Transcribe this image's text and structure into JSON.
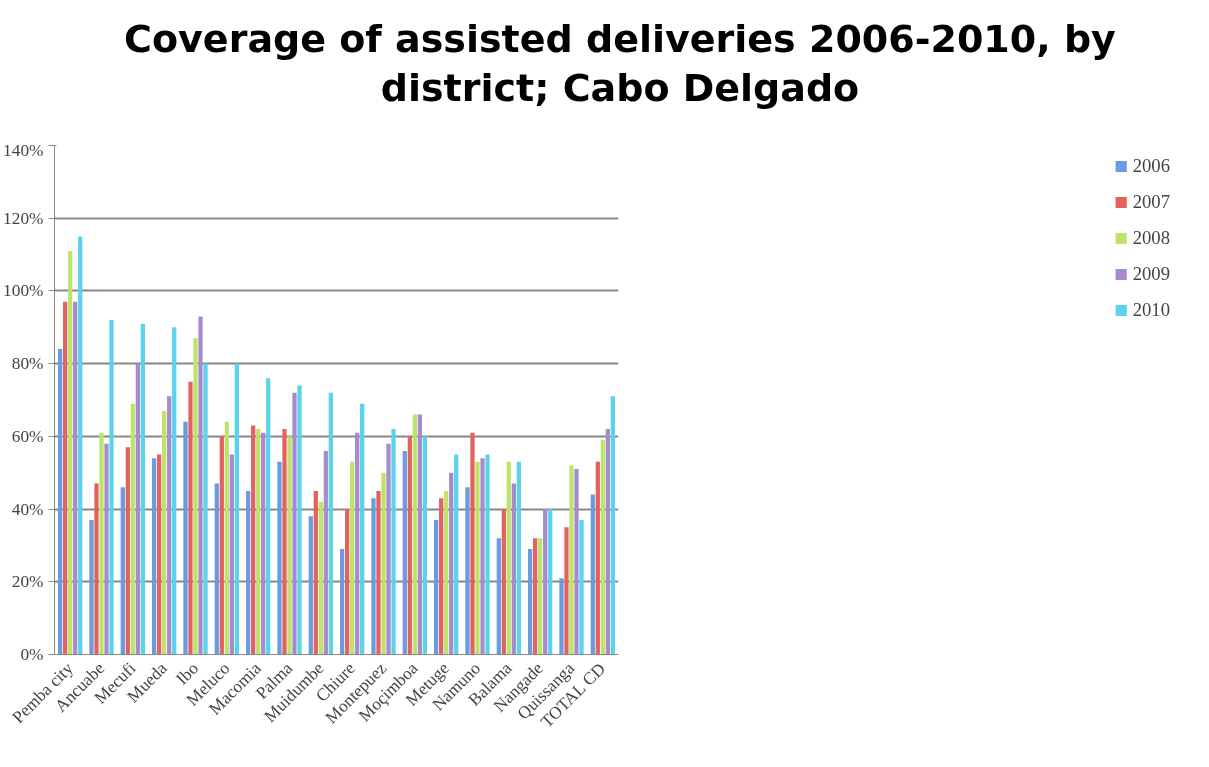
{
  "chart_data": {
    "type": "bar",
    "title": "Coverage of assisted deliveries 2006-2010, by district; Cabo Delgado",
    "categories": [
      "Pemba city",
      "Ancuabe",
      "Mecufi",
      "Mueda",
      "Ibo",
      "Meluco",
      "Macomia",
      "Palma",
      "Muidumbe",
      "Chiure",
      "Montepuez",
      "Moçimboa",
      "Metuge",
      "Namuno",
      "Balama",
      "Nangade",
      "Quissanga",
      "TOTAL CD"
    ],
    "series": [
      {
        "name": "2006",
        "color": "#6a9be0",
        "values": [
          84,
          37,
          46,
          54,
          64,
          47,
          45,
          53,
          38,
          29,
          43,
          56,
          37,
          46,
          32,
          29,
          21,
          44
        ]
      },
      {
        "name": "2007",
        "color": "#e4625e",
        "values": [
          97,
          47,
          57,
          55,
          75,
          60,
          63,
          62,
          45,
          40,
          45,
          60,
          43,
          61,
          40,
          32,
          35,
          53
        ]
      },
      {
        "name": "2008",
        "color": "#bde36a",
        "values": [
          111,
          61,
          69,
          67,
          87,
          64,
          62,
          60,
          42,
          53,
          50,
          66,
          45,
          53,
          53,
          32,
          52,
          59
        ]
      },
      {
        "name": "2009",
        "color": "#a68cce",
        "values": [
          97,
          58,
          80,
          71,
          93,
          55,
          61,
          72,
          56,
          61,
          58,
          66,
          50,
          54,
          47,
          40,
          51,
          62
        ]
      },
      {
        "name": "2010",
        "color": "#5bd3ec",
        "values": [
          115,
          92,
          91,
          90,
          80,
          80,
          76,
          74,
          72,
          69,
          62,
          60,
          55,
          55,
          53,
          40,
          37,
          71
        ]
      }
    ],
    "ylim": [
      0,
      140
    ],
    "yticks": [
      {
        "value": 0,
        "label": "0%"
      },
      {
        "value": 20,
        "label": "20%"
      },
      {
        "value": 40,
        "label": "40%"
      },
      {
        "value": 60,
        "label": "60%"
      },
      {
        "value": 80,
        "label": "80%"
      },
      {
        "value": 100,
        "label": "100%"
      },
      {
        "value": 120,
        "label": "120%"
      },
      {
        "value": 140,
        "label": "140%"
      }
    ],
    "grid": "y",
    "legend": "right"
  }
}
